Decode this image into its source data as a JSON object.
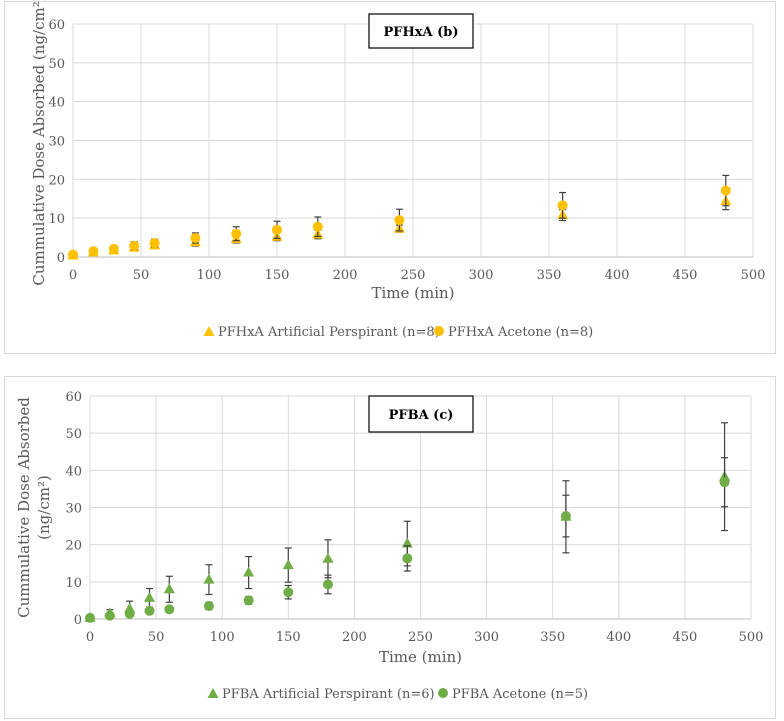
{
  "chart_data": [
    {
      "type": "scatter",
      "title": "PFHxA (b)",
      "xlabel": "Time (min)",
      "ylabel": "Cummulative Dose Absorbed  (ng/cm²)",
      "xlim": [
        0,
        500
      ],
      "ylim": [
        0,
        60
      ],
      "xticks": [
        "0",
        "50",
        "100",
        "150",
        "200",
        "250",
        "300",
        "350",
        "400",
        "450",
        "500"
      ],
      "yticks": [
        "0",
        "10",
        "20",
        "30",
        "40",
        "50",
        "60"
      ],
      "grid": true,
      "legend": "bottom",
      "series": [
        {
          "name": "PFHxA Artificial Perspirant (n=8)",
          "marker": "triangle",
          "color": "#FFC000",
          "x": [
            0,
            15,
            30,
            45,
            60,
            90,
            120,
            150,
            180,
            240,
            360,
            480
          ],
          "y": [
            0.4,
            1.2,
            1.7,
            2.4,
            3.0,
            3.8,
            4.6,
            5.2,
            5.8,
            7.3,
            10.8,
            14.4
          ],
          "err": [
            0.3,
            0.5,
            0.6,
            0.7,
            0.8,
            1.0,
            1.0,
            1.0,
            1.1,
            0.9,
            1.4,
            2.2
          ]
        },
        {
          "name": "PFHxA Acetone (n=8)",
          "marker": "circle",
          "color": "#FFC000",
          "x": [
            0,
            15,
            30,
            45,
            60,
            90,
            120,
            150,
            180,
            240,
            360,
            480
          ],
          "y": [
            0.6,
            1.5,
            2.1,
            2.9,
            3.6,
            4.9,
            6.0,
            7.0,
            7.8,
            9.5,
            13.3,
            17.1
          ],
          "err": [
            0.4,
            0.6,
            0.8,
            1.0,
            1.0,
            1.3,
            1.8,
            2.2,
            2.5,
            2.8,
            3.3,
            3.9
          ]
        }
      ]
    },
    {
      "type": "scatter",
      "title": "PFBA (c)",
      "xlabel": "Time (min)",
      "ylabel_lines": [
        "Cummulative Dose Absorbed",
        "(ng/cm²)"
      ],
      "xlim": [
        0,
        500
      ],
      "ylim": [
        0,
        60
      ],
      "xticks": [
        "0",
        "50",
        "100",
        "150",
        "200",
        "250",
        "300",
        "350",
        "400",
        "450",
        "500"
      ],
      "yticks": [
        "0",
        "10",
        "20",
        "30",
        "40",
        "50",
        "60"
      ],
      "grid": true,
      "legend": "bottom",
      "series": [
        {
          "name": "PFBA Artificial Perspirant (n=6)",
          "marker": "triangle",
          "color": "#70AD47",
          "x": [
            0,
            15,
            30,
            45,
            60,
            90,
            120,
            150,
            180,
            240,
            360,
            480
          ],
          "y": [
            0.3,
            1.5,
            2.8,
            5.7,
            8.0,
            10.6,
            12.5,
            14.5,
            16.2,
            20.3,
            27.5,
            38.3
          ],
          "err": [
            0.3,
            1.0,
            2.0,
            2.5,
            3.5,
            4.0,
            4.3,
            4.6,
            5.1,
            6.0,
            9.7,
            14.5
          ]
        },
        {
          "name": "PFBA Acetone (n=5)",
          "marker": "circle",
          "color": "#70AD47",
          "x": [
            0,
            15,
            30,
            45,
            60,
            90,
            120,
            150,
            180,
            240,
            360,
            480
          ],
          "y": [
            0.3,
            0.9,
            1.4,
            2.2,
            2.6,
            3.5,
            5.0,
            7.2,
            9.3,
            16.3,
            27.7,
            36.8
          ],
          "err": [
            0.2,
            0.4,
            0.6,
            0.7,
            0.8,
            1.0,
            1.0,
            1.8,
            2.5,
            3.4,
            5.6,
            6.6
          ]
        }
      ]
    }
  ]
}
